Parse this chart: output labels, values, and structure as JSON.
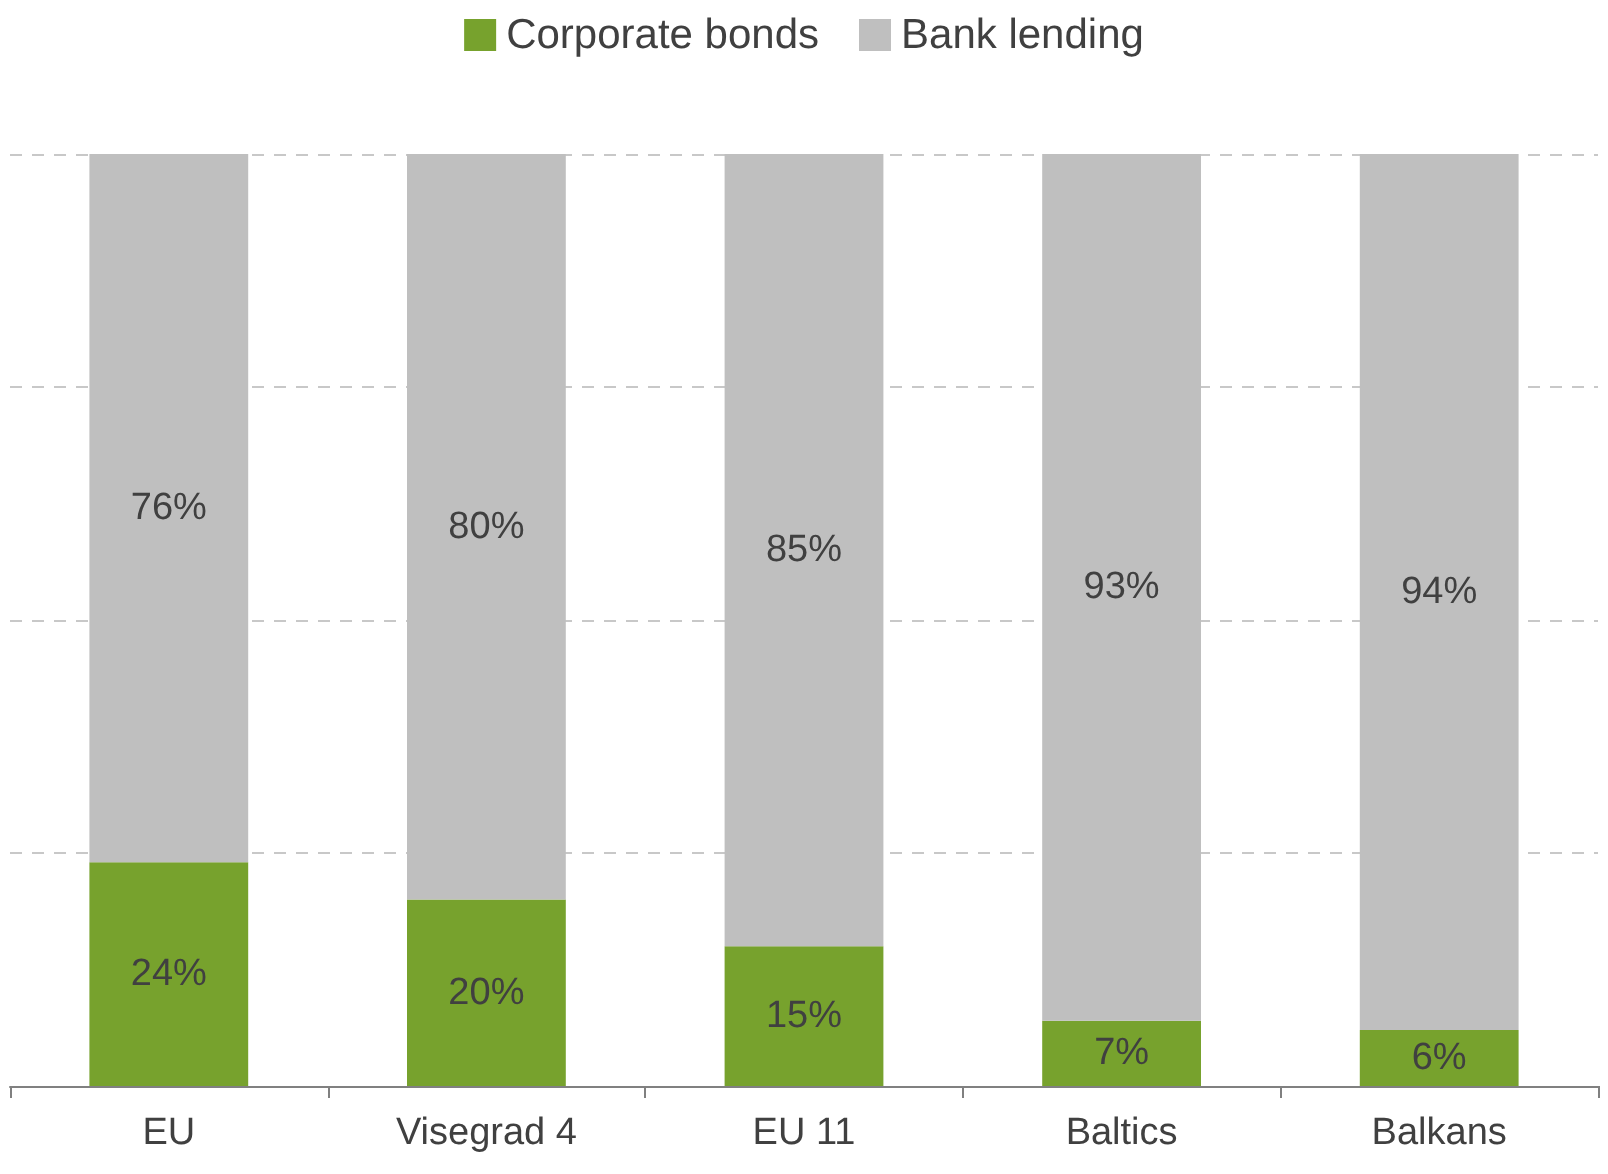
{
  "chart_data": {
    "type": "bar",
    "stacked": true,
    "categories": [
      "EU",
      "Visegrad 4",
      "EU 11",
      "Baltics",
      "Balkans"
    ],
    "series": [
      {
        "name": "Corporate bonds",
        "color": "#77a22d",
        "values": [
          24,
          20,
          15,
          7,
          6
        ],
        "value_labels": [
          "24%",
          "20%",
          "15%",
          "7%",
          "6%"
        ]
      },
      {
        "name": "Bank lending",
        "color": "#bfbfbf",
        "values": [
          76,
          80,
          85,
          93,
          94
        ],
        "value_labels": [
          "76%",
          "80%",
          "85%",
          "93%",
          "94%"
        ]
      }
    ],
    "ylim": [
      0,
      100
    ],
    "yticks": [
      {
        "value": 0,
        "label": null
      },
      {
        "value": 25,
        "label": null
      },
      {
        "value": 50,
        "label": null
      },
      {
        "value": 75,
        "label": null
      },
      {
        "value": 100,
        "label": null
      }
    ],
    "tick_labels": "x",
    "grid": "y",
    "legend": "top"
  }
}
